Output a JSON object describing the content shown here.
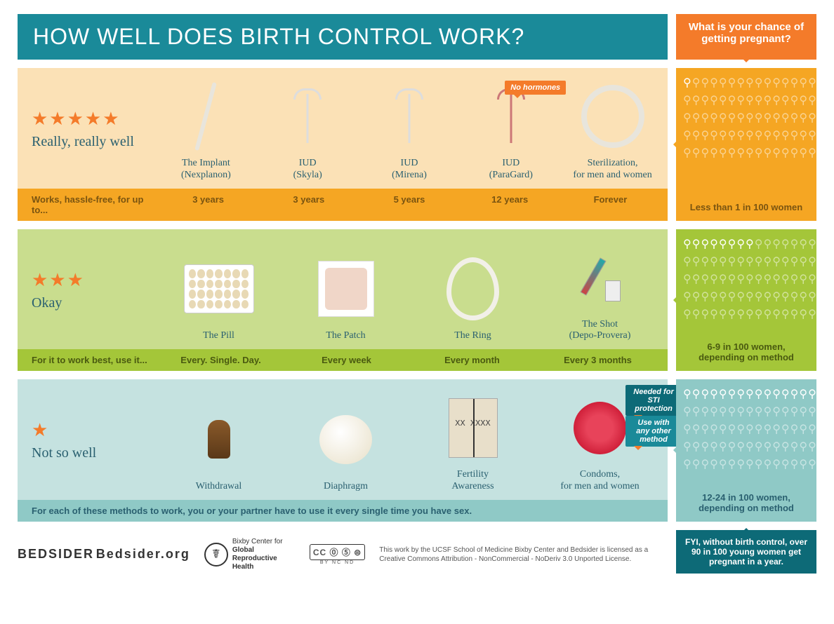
{
  "colors": {
    "teal": "#1a8a99",
    "teal_dark": "#0d6a77",
    "orange": "#f47b2a",
    "orange_strip": "#f5a623",
    "tier1_bg": "#fbe1b6",
    "tier1_strip": "#f5a623",
    "tier1_side": "#f5a623",
    "tier2_bg": "#c9dd8e",
    "tier2_strip": "#a4c639",
    "tier2_side": "#a4c639",
    "tier3_bg": "#c5e2e0",
    "tier3_strip": "#8fc9c6",
    "tier3_side": "#8fc9c6",
    "white": "#ffffff",
    "text_teal": "#2a6070",
    "text_brown": "#7a5410"
  },
  "title": "HOW WELL DOES BIRTH CONTROL WORK?",
  "chance_header": "What is your chance of getting pregnant?",
  "tiers": [
    {
      "stars": 5,
      "rating": "Really, really well",
      "footer_lead": "Works, hassle-free, for up to...",
      "methods": [
        {
          "label": "The Implant\n(Nexplanon)",
          "footer": "3 years",
          "icon": "implant"
        },
        {
          "label": "IUD\n(Skyla)",
          "footer": "3 years",
          "icon": "iud"
        },
        {
          "label": "IUD\n(Mirena)",
          "footer": "5 years",
          "icon": "iud"
        },
        {
          "label": "IUD\n(ParaGard)",
          "footer": "12 years",
          "icon": "iud-copper",
          "callout": "No hormones",
          "callout_color": "#f47b2a"
        },
        {
          "label": "Sterilization,\nfor men and women",
          "footer": "Forever",
          "icon": "knot"
        }
      ],
      "side_caption": "Less than 1 in 100 women",
      "side_total": 100,
      "side_filled": 1
    },
    {
      "stars": 3,
      "rating": "Okay",
      "footer_lead": "For it to work best, use it...",
      "methods": [
        {
          "label": "The Pill",
          "footer": "Every. Single. Day.",
          "icon": "pillpack"
        },
        {
          "label": "The Patch",
          "footer": "Every week",
          "icon": "patch"
        },
        {
          "label": "The Ring",
          "footer": "Every month",
          "icon": "ring"
        },
        {
          "label": "The Shot\n(Depo-Provera)",
          "footer": "Every 3 months",
          "icon": "syringe"
        }
      ],
      "side_caption": "6-9 in 100 women,\ndepending on method",
      "side_total": 100,
      "side_filled": 8
    },
    {
      "stars": 1,
      "rating": "Not so well",
      "footer_full": "For each of these methods to work, you or your partner have to use it every single time you have sex.",
      "methods": [
        {
          "label": "Withdrawal",
          "icon": "cork"
        },
        {
          "label": "Diaphragm",
          "icon": "diaph"
        },
        {
          "label": "Fertility\nAwareness",
          "icon": "notebook"
        },
        {
          "label": "Condoms,\nfor men and women",
          "icon": "condom",
          "callouts": [
            {
              "text": "Needed for STI protection",
              "color": "#0d6a77"
            },
            {
              "text": "Use with any other method",
              "color": "#1a8a99"
            }
          ]
        }
      ],
      "side_caption": "12-24 in 100 women,\ndepending on method",
      "side_total": 100,
      "side_filled": 18
    }
  ],
  "fyi": "FYI, without birth control, over 90 in 100 young women get pregnant in a year.",
  "footer": {
    "bedsider": "BEDSIDER",
    "bedsider_sub": "Bedsider.org",
    "bixby": "Bixby Center for Global Reproductive Health",
    "cc": "CC ⓪ ⑤ ⊜",
    "cc_sub": "BY  NC  ND",
    "license": "This work by the UCSF School of Medicine Bixby Center and Bedsider is licensed as a Creative Commons Attribution - NonCommercial - NoDeriv 3.0 Unported License."
  },
  "notebook_text": "XX  XXXX"
}
